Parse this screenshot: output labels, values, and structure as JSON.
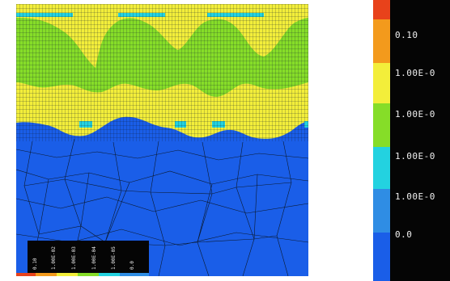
{
  "colors": {
    "background": "#ffffff",
    "level_0": "#1a5ee8",
    "level_1": "#2f8de4",
    "level_2": "#23d2e0",
    "level_3": "#86dd28",
    "level_4": "#f3ee3a",
    "level_5": "#f39a1c",
    "level_6": "#e8421b",
    "mesh_line": "#0c1a2e",
    "legend_bg": "#050505"
  },
  "legend": {
    "labels": [
      "0.10",
      "1.00E-0",
      "1.00E-0",
      "1.00E-0",
      "1.00E-0",
      "0.0"
    ]
  },
  "mini_legend": {
    "labels": [
      "0.10",
      "1.00E-02",
      "1.00E-03",
      "1.00E-04",
      "1.00E-05",
      "0.0"
    ]
  }
}
